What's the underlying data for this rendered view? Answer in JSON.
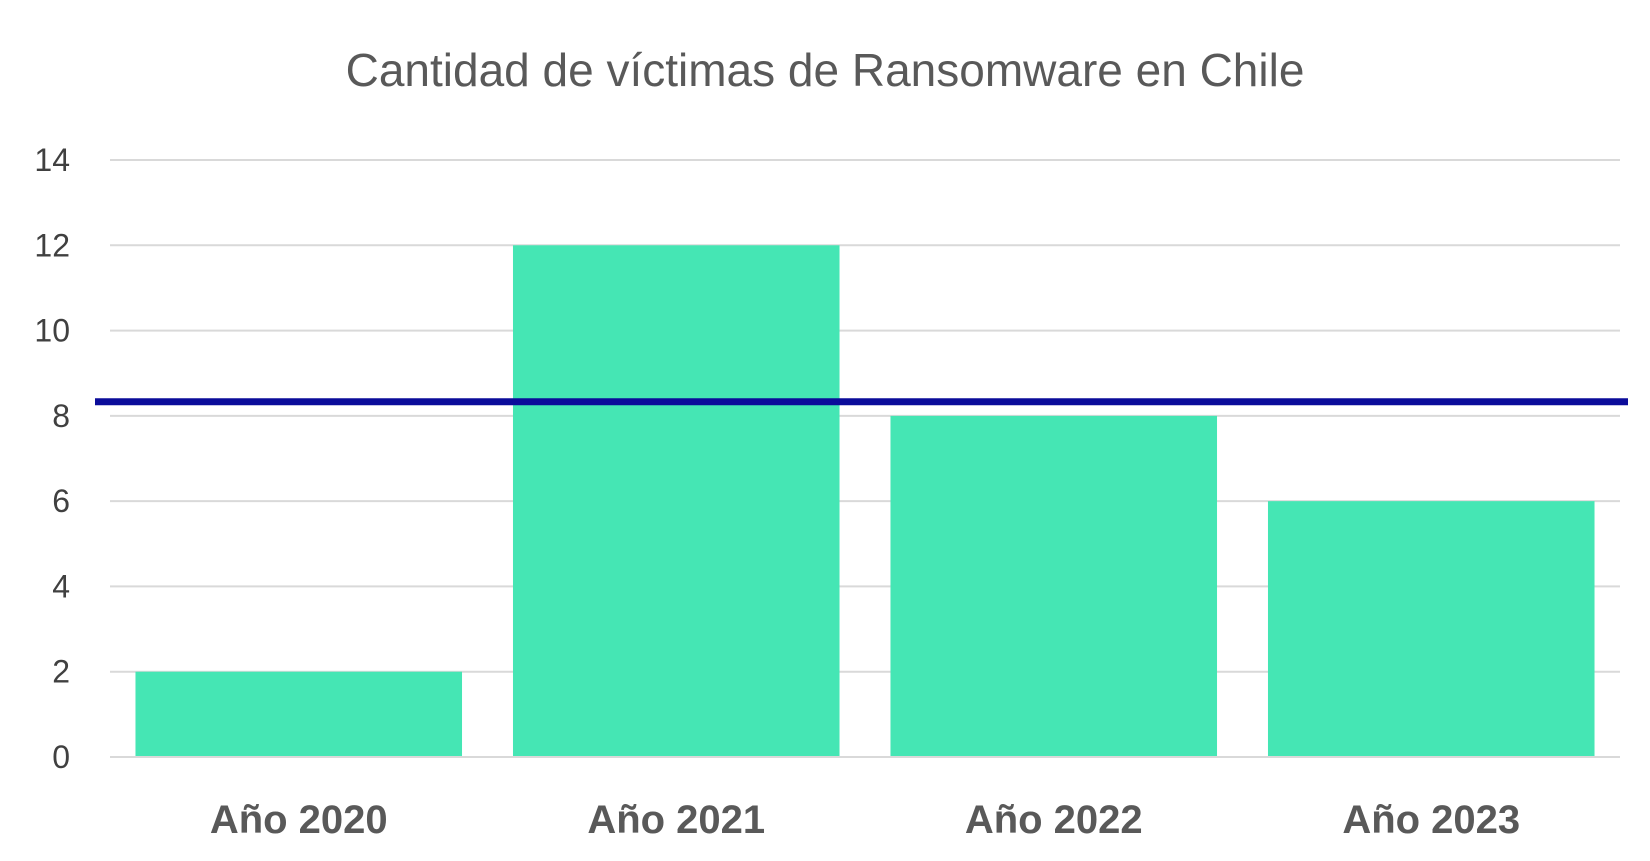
{
  "chart_data": {
    "type": "bar",
    "title": "Cantidad de víctimas de Ransomware en Chile",
    "xlabel": "",
    "ylabel": "",
    "categories": [
      "Año 2020",
      "Año 2021",
      "Año 2022",
      "Año 2023"
    ],
    "values": [
      2,
      12,
      8,
      6
    ],
    "ylim": [
      0,
      14
    ],
    "yticks": [
      "0",
      "2",
      "4",
      "6",
      "8",
      "10",
      "12",
      "14"
    ],
    "grid": true,
    "reference_line": {
      "value": 8.33
    },
    "colors": {
      "bar": "#45E6B4",
      "reference_line": "#0B0C9A",
      "grid": "#D9D9D9",
      "axis": "#D9D9D9"
    }
  }
}
